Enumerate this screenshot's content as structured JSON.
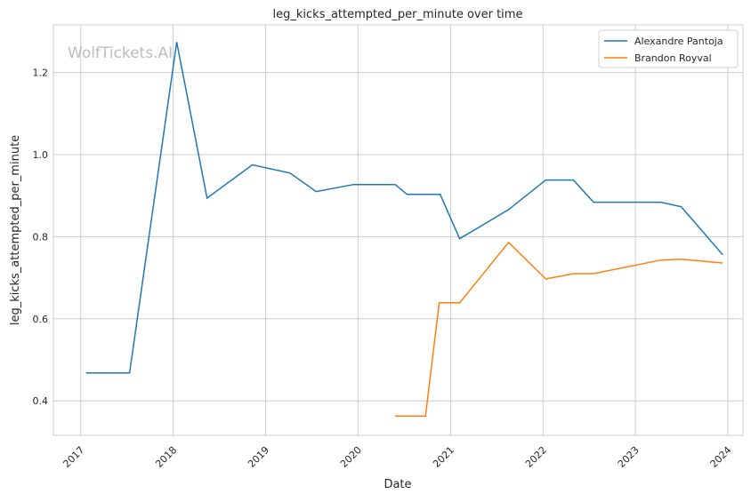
{
  "chart_data": {
    "type": "line",
    "title": "leg_kicks_attempted_per_minute over time",
    "xlabel": "Date",
    "ylabel": "leg_kicks_attempted_per_minute",
    "watermark": "WolfTickets.AI",
    "xlim": [
      "2016-09-15",
      "2024-03-01"
    ],
    "ylim": [
      0.316,
      1.316
    ],
    "x_ticks": [
      "2017",
      "2018",
      "2019",
      "2020",
      "2021",
      "2022",
      "2023",
      "2024"
    ],
    "y_ticks": [
      "0.4",
      "0.6",
      "0.8",
      "1.0",
      "1.2"
    ],
    "grid": true,
    "legend_placement": "top-right",
    "series": [
      {
        "name": "Alexandre Pantoja",
        "color": "#1f77b4",
        "x": [
          "2017-01-22",
          "2017-07-13",
          "2018-01-15",
          "2018-05-15",
          "2018-11-10",
          "2019-04-08",
          "2019-07-20",
          "2019-12-15",
          "2020-05-27",
          "2020-07-13",
          "2020-11-21",
          "2021-02-06",
          "2021-08-18",
          "2022-01-12",
          "2022-05-01",
          "2022-07-20",
          "2023-04-12",
          "2023-07-01",
          "2023-12-12"
        ],
        "values": [
          0.468,
          0.468,
          1.274,
          0.894,
          0.975,
          0.955,
          0.91,
          0.927,
          0.927,
          0.903,
          0.903,
          0.795,
          0.866,
          0.938,
          0.938,
          0.884,
          0.884,
          0.873,
          0.756
        ]
      },
      {
        "name": "Brandon Royval",
        "color": "#ff7f0e",
        "x": [
          "2020-05-27",
          "2020-09-24",
          "2020-11-17",
          "2021-02-06",
          "2021-08-18",
          "2022-01-12",
          "2022-05-01",
          "2022-07-20",
          "2023-04-12",
          "2023-07-01",
          "2023-12-12"
        ],
        "values": [
          0.363,
          0.363,
          0.639,
          0.639,
          0.786,
          0.697,
          0.71,
          0.71,
          0.743,
          0.745,
          0.736
        ]
      }
    ]
  }
}
